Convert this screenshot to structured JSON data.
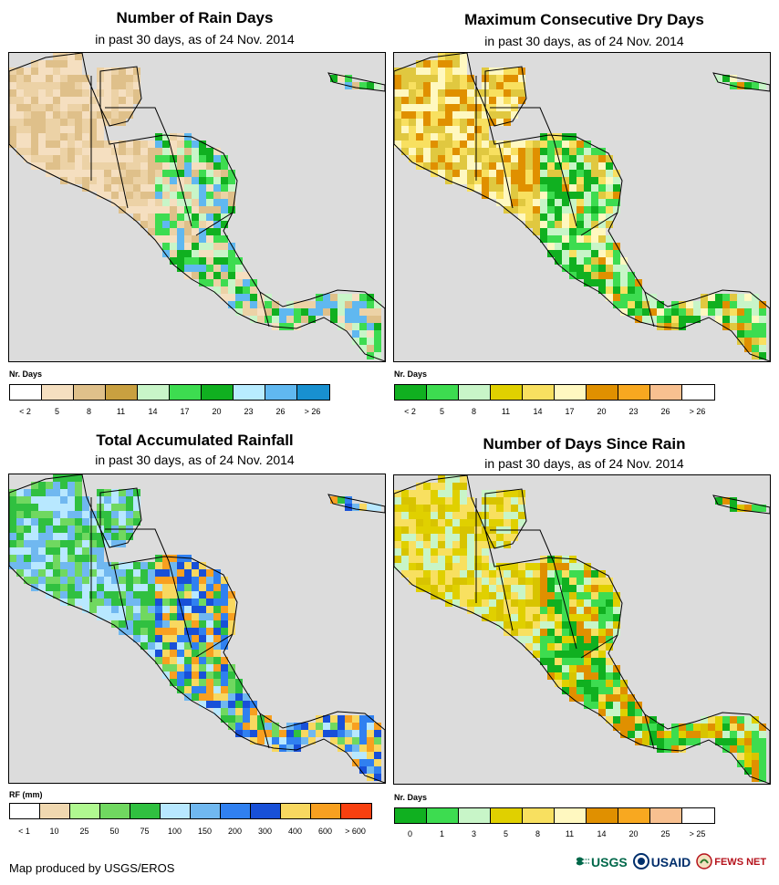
{
  "footer": {
    "credit": "Map produced by USGS/EROS"
  },
  "logos": {
    "usgs": "USGS",
    "usaid": "USAID",
    "fewsnet": "FEWS NET"
  },
  "icons": {
    "usgs": "usgs-logo-icon",
    "usaid": "usaid-seal-icon",
    "fewsnet": "fews-net-logo-icon"
  },
  "colors": {
    "ocean": "#dcdcdc",
    "border": "#000000"
  },
  "panels": [
    {
      "id": "rain-days",
      "title": "Number of Rain Days",
      "subtitle": "in past 30 days, as of 24 Nov. 2014",
      "legend_title": "Nr. Days",
      "legend_colors": [
        "#ffffff",
        "#f5dfc0",
        "#dfc08a",
        "#c9a040",
        "#c8f5c8",
        "#3ddc50",
        "#10b020",
        "#b8ecff",
        "#60b8f0",
        "#1890d0"
      ],
      "legend_labels": [
        "< 2",
        "5",
        "8",
        "11",
        "14",
        "17",
        "20",
        "23",
        "26",
        "> 26"
      ],
      "land_colors": [
        "#f5dfc0",
        "#dfc08a",
        "#ecd2a6"
      ],
      "wet_colors": [
        "#3ddc50",
        "#10b020",
        "#c8f5c8",
        "#60b8f0"
      ]
    },
    {
      "id": "dry-days",
      "title": "Maximum Consecutive Dry Days",
      "subtitle": "in past 30 days, as of 24 Nov. 2014",
      "legend_title": "Nr. Days",
      "legend_colors": [
        "#10b020",
        "#3ddc50",
        "#c8f5c8",
        "#e0d000",
        "#f8e060",
        "#fff8c0",
        "#e09000",
        "#f8a820",
        "#f8c090",
        "#ffffff"
      ],
      "legend_labels": [
        "< 2",
        "5",
        "8",
        "11",
        "14",
        "17",
        "20",
        "23",
        "26",
        "> 26"
      ],
      "land_colors": [
        "#fff8c0",
        "#e0c840",
        "#e09000",
        "#f8e060"
      ],
      "wet_colors": [
        "#10b020",
        "#3ddc50",
        "#c8f5c8"
      ]
    },
    {
      "id": "rainfall",
      "title": "Total Accumulated Rainfall",
      "subtitle": "in past 30 days, as of 24 Nov. 2014",
      "legend_title": "RF (mm)",
      "legend_colors": [
        "#ffffff",
        "#f0d8b0",
        "#b0f890",
        "#70d860",
        "#30c040",
        "#b8e8ff",
        "#70b8f0",
        "#3080f0",
        "#1850d8",
        "#f8d860",
        "#f8a020",
        "#f84010"
      ],
      "legend_labels": [
        "< 1",
        "10",
        "25",
        "50",
        "75",
        "100",
        "150",
        "200",
        "300",
        "400",
        "600",
        "> 600"
      ],
      "land_colors": [
        "#70d860",
        "#b8e8ff",
        "#70b8f0",
        "#30c040"
      ],
      "wet_colors": [
        "#3080f0",
        "#1850d8",
        "#f8d860",
        "#f8a020"
      ]
    },
    {
      "id": "since-rain",
      "title": "Number of Days Since Rain",
      "subtitle": "in past 30 days, as of 24 Nov. 2014",
      "legend_title": "Nr. Days",
      "legend_colors": [
        "#10b020",
        "#3ddc50",
        "#c8f5c8",
        "#e0d000",
        "#f8e060",
        "#fff8c0",
        "#e09000",
        "#f8a820",
        "#f8c090",
        "#ffffff"
      ],
      "legend_labels": [
        "0",
        "1",
        "3",
        "5",
        "8",
        "11",
        "14",
        "20",
        "25",
        "> 25"
      ],
      "land_colors": [
        "#c8f5c8",
        "#e0d000",
        "#f8e060",
        "#d8c400"
      ],
      "wet_colors": [
        "#10b020",
        "#3ddc50",
        "#e09000"
      ]
    }
  ]
}
